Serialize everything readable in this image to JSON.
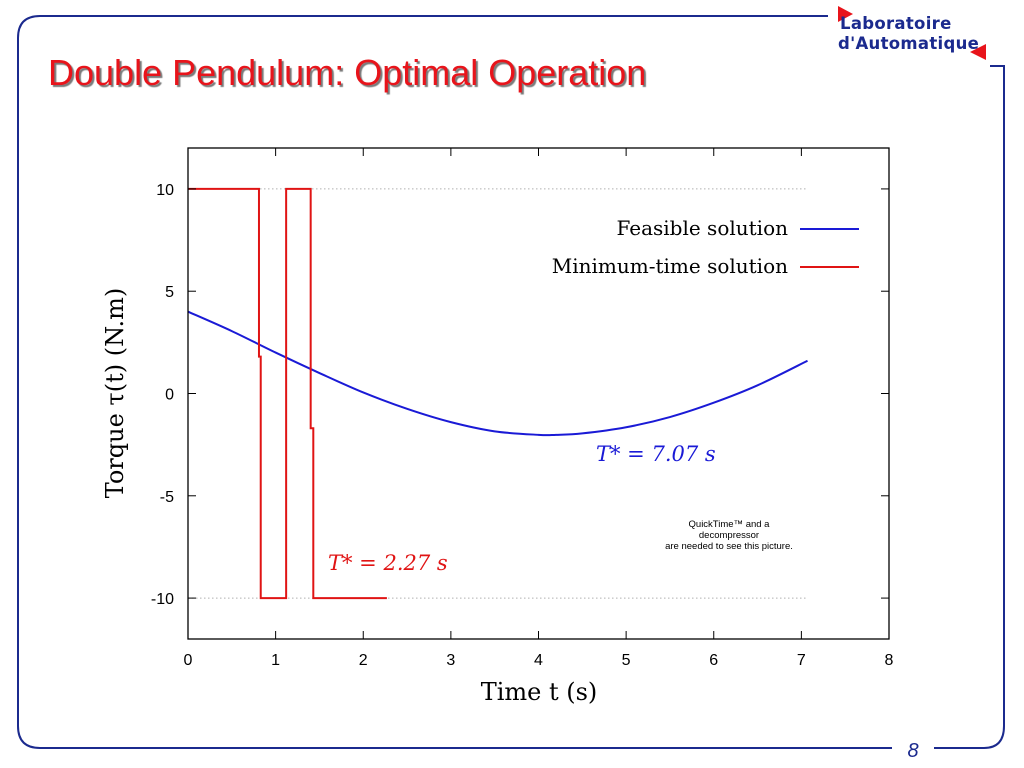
{
  "slide": {
    "title": "Double Pendulum: Optimal Operation",
    "page_number": "8"
  },
  "logo": {
    "line1": "Laboratoire",
    "line2": "d'Automatique"
  },
  "colors": {
    "title": "#e8141b",
    "frame": "#1b2a8e",
    "feasible": "#1a1ad6",
    "min_time": "#e01414",
    "gridline": "#b0b0b0"
  },
  "quicktime_note": {
    "line1": "QuickTime™ and a",
    "line2": "decompressor",
    "line3": "are needed to see this picture."
  },
  "chart_data": {
    "type": "line",
    "xlabel": "Time t (s)",
    "ylabel": "Torque τ(t) (N.m)",
    "xlim": [
      0,
      8
    ],
    "ylim": [
      -12,
      12
    ],
    "x_ticks": [
      "0",
      "1",
      "2",
      "3",
      "4",
      "5",
      "6",
      "7",
      "8"
    ],
    "y_ticks": [
      "10",
      "5",
      "0",
      "-5",
      "-10"
    ],
    "y_tick_values": [
      10,
      5,
      0,
      -5,
      -10
    ],
    "gridlines_y": [
      10,
      -10
    ],
    "legend_position": "top-right",
    "series": [
      {
        "name": "Feasible solution",
        "color": "#1a1ad6",
        "x": [
          0,
          0.5,
          1.0,
          1.5,
          2.0,
          2.5,
          3.0,
          3.5,
          4.0,
          4.2,
          4.5,
          5.0,
          5.5,
          6.0,
          6.5,
          7.07
        ],
        "y": [
          4.0,
          3.05,
          2.0,
          1.0,
          0.05,
          -0.75,
          -1.4,
          -1.85,
          -2.02,
          -2.02,
          -1.95,
          -1.65,
          -1.15,
          -0.45,
          0.4,
          1.6
        ]
      },
      {
        "name": "Minimum-time solution",
        "color": "#e01414",
        "x": [
          0,
          0.81,
          0.81,
          0.83,
          0.83,
          1.12,
          1.12,
          1.4,
          1.4,
          1.43,
          1.43,
          2.27
        ],
        "y": [
          10,
          10,
          1.8,
          1.8,
          -10,
          -10,
          10,
          10,
          -1.7,
          -1.7,
          -10,
          -10
        ]
      }
    ],
    "annotations": [
      {
        "text": "T* = 7.07 s",
        "series": "Feasible solution",
        "x": 4.6,
        "y": -3.0
      },
      {
        "text": "T* = 2.27 s",
        "series": "Minimum-time solution",
        "x": 1.6,
        "y": -8.2
      }
    ]
  }
}
